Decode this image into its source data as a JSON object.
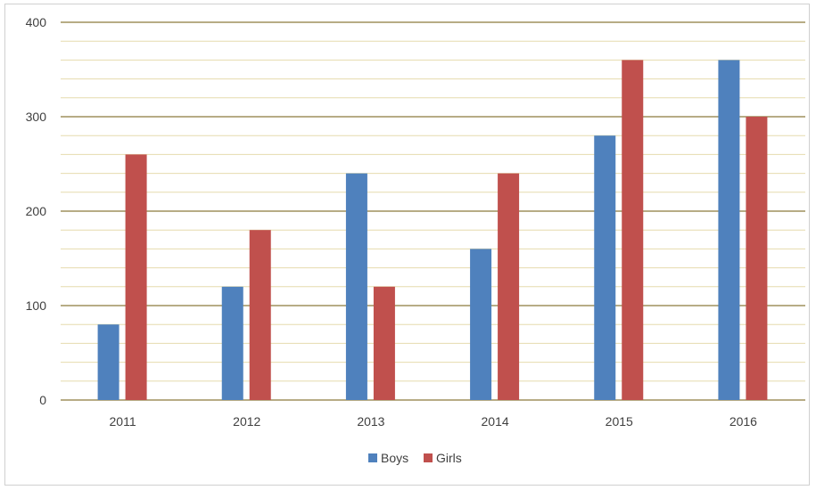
{
  "chart_data": {
    "type": "bar",
    "title": "",
    "xlabel": "",
    "ylabel": "",
    "categories": [
      "2011",
      "2012",
      "2013",
      "2014",
      "2015",
      "2016"
    ],
    "series": [
      {
        "name": "Boys",
        "values": [
          80,
          120,
          240,
          160,
          280,
          360
        ],
        "color": "#4f81bd"
      },
      {
        "name": "Girls",
        "values": [
          260,
          180,
          120,
          240,
          360,
          300
        ],
        "color": "#c0504d"
      }
    ],
    "ylim": [
      0,
      400
    ],
    "yticks": [
      0,
      100,
      200,
      300,
      400
    ],
    "minor_gridline_step": 20,
    "grid": true,
    "legend_position": "bottom",
    "colors": {
      "major_grid": "#8c7a3c",
      "minor_grid": "#e6dcae",
      "axis_text": "#404040"
    }
  }
}
